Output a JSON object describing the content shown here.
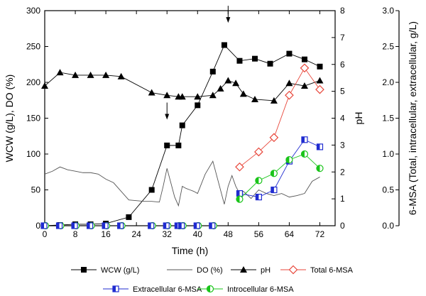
{
  "chart_data": {
    "type": "line",
    "title": "",
    "xlabel": "Time (h)",
    "ylabel_left": "WCW (g/L), DO (%)",
    "ylabel_right_ph": "pH",
    "ylabel_right_msa": "6-MSA (Total, intracellular, extracellular, g/L)",
    "xlim": [
      0,
      76
    ],
    "ylim_left": [
      0,
      300
    ],
    "ylim_ph": [
      0,
      8
    ],
    "ylim_msa": [
      0,
      3.0
    ],
    "x_ticks": [
      0,
      8,
      16,
      24,
      32,
      40,
      48,
      56,
      64,
      72
    ],
    "left_ticks": [
      0,
      50,
      100,
      150,
      200,
      250,
      300
    ],
    "ph_ticks": [
      0,
      1,
      2,
      3,
      4,
      5,
      6,
      7,
      8
    ],
    "msa_ticks": [
      "0.0",
      "0.5",
      "1.0",
      "1.5",
      "2.0",
      "2.5",
      "3.0"
    ],
    "annotations": [
      {
        "label": "down-arrow",
        "x": 32,
        "y": 150
      },
      {
        "label": "down-arrow",
        "x": 48,
        "y": 285
      }
    ],
    "series": [
      {
        "name": "WCW (g/L)",
        "axis": "left",
        "marker": "square",
        "x": [
          0,
          4,
          8,
          12,
          16,
          22,
          28,
          32,
          35,
          36,
          40,
          44,
          47,
          51,
          55,
          59,
          64,
          68,
          72
        ],
        "y": [
          0,
          1,
          2,
          2,
          3,
          12,
          50,
          112,
          112,
          140,
          168,
          215,
          252,
          230,
          233,
          226,
          240,
          232,
          222
        ]
      },
      {
        "name": "DO (%)",
        "axis": "left",
        "marker": "none",
        "x": [
          0,
          2,
          4,
          6,
          8,
          10,
          12,
          14,
          16,
          18,
          20,
          22,
          24,
          26,
          28,
          30,
          31,
          32,
          33,
          34,
          35,
          36,
          37,
          38,
          39,
          40,
          42,
          44,
          46,
          47,
          48,
          49,
          50,
          51,
          52,
          54,
          56,
          58,
          60,
          62,
          64,
          66,
          68,
          70,
          72
        ],
        "y": [
          72,
          76,
          82,
          78,
          76,
          74,
          74,
          72,
          65,
          60,
          48,
          36,
          35,
          34,
          34,
          33,
          55,
          80,
          60,
          40,
          28,
          55,
          52,
          50,
          48,
          45,
          72,
          90,
          50,
          30,
          55,
          70,
          55,
          45,
          48,
          38,
          50,
          45,
          42,
          45,
          40,
          42,
          45,
          62,
          68
        ]
      },
      {
        "name": "pH",
        "axis": "ph",
        "marker": "triangle",
        "x": [
          0,
          4,
          8,
          12,
          16,
          20,
          28,
          32,
          35,
          36,
          40,
          44,
          46,
          48,
          50,
          52,
          55,
          60,
          64,
          68,
          72
        ],
        "y": [
          5.2,
          5.7,
          5.6,
          5.6,
          5.6,
          5.55,
          4.95,
          4.85,
          4.8,
          4.8,
          4.8,
          4.85,
          5.1,
          5.4,
          5.3,
          4.9,
          4.7,
          4.65,
          5.3,
          5.2,
          5.4
        ]
      },
      {
        "name": "Total 6-MSA",
        "axis": "msa",
        "marker": "diamond",
        "x": [
          51,
          56,
          60,
          64,
          68,
          72
        ],
        "y": [
          0.82,
          1.03,
          1.23,
          1.82,
          2.2,
          1.9
        ]
      },
      {
        "name": "Extracellular 6-MSA",
        "axis": "msa",
        "marker": "half-square",
        "x": [
          51,
          56,
          60,
          64,
          68,
          72
        ],
        "y": [
          0.45,
          0.4,
          0.5,
          0.9,
          1.2,
          1.1
        ]
      },
      {
        "name": "Introcellular 6-MSA",
        "axis": "msa",
        "marker": "half-circle",
        "x": [
          51,
          56,
          60,
          64,
          68,
          72
        ],
        "y": [
          0.37,
          0.63,
          0.73,
          0.92,
          1.0,
          0.8
        ]
      }
    ],
    "baseline_markers": {
      "x": [
        0,
        4,
        8,
        12,
        16,
        20,
        28,
        32,
        35,
        36,
        40,
        44
      ],
      "y": [
        0,
        0,
        0,
        0,
        0,
        0,
        0,
        0,
        0,
        0,
        0,
        0
      ]
    },
    "legend": {
      "placement": "bottom",
      "items": [
        {
          "label": "WCW (g/L)",
          "marker": "square"
        },
        {
          "label": "DO (%)",
          "marker": "none"
        },
        {
          "label": "pH",
          "marker": "triangle"
        },
        {
          "label": "Total 6-MSA",
          "marker": "diamond"
        },
        {
          "label": "Extracellular 6-MSA",
          "marker": "half-square"
        },
        {
          "label": "Introcellular 6-MSA",
          "marker": "half-circle"
        }
      ]
    },
    "colors": {
      "wcw": "#000000",
      "do": "#555555",
      "ph": "#000000",
      "total": "#e8473b",
      "extra": "#1f2bd0",
      "intro": "#19c419"
    }
  }
}
